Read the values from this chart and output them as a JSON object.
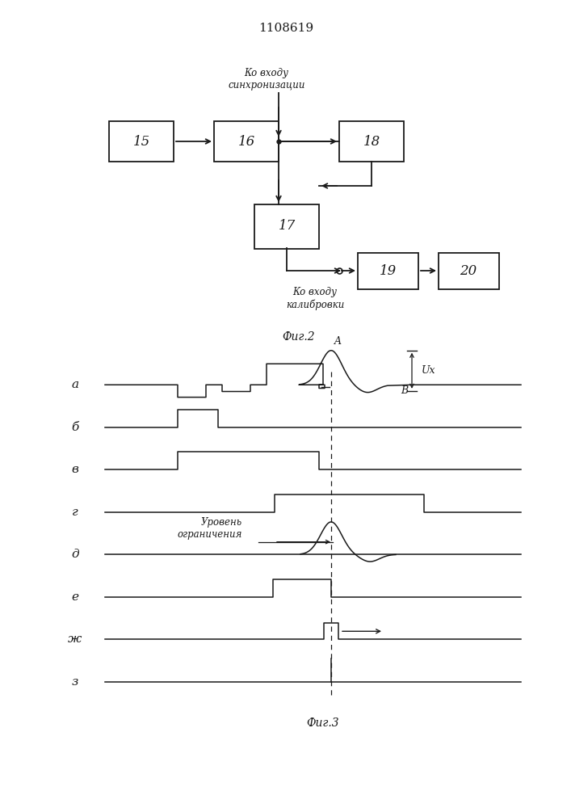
{
  "title": "1108619",
  "fig2_label": "Фиг.2",
  "fig3_label": "Фиг.3",
  "bg_color": "#ffffff",
  "line_color": "#1a1a1a",
  "synchro_text": "Ко входу\nсинхронизации",
  "calibration_text": "Ко входу\nкалибровки",
  "limit_text": "Уровень\nограничения",
  "Ux_text": "Ux",
  "A_text": "A",
  "B_text": "B",
  "waveform_labels": [
    "а",
    "б",
    "в",
    "г",
    "д",
    "е",
    "ж",
    "з"
  ]
}
